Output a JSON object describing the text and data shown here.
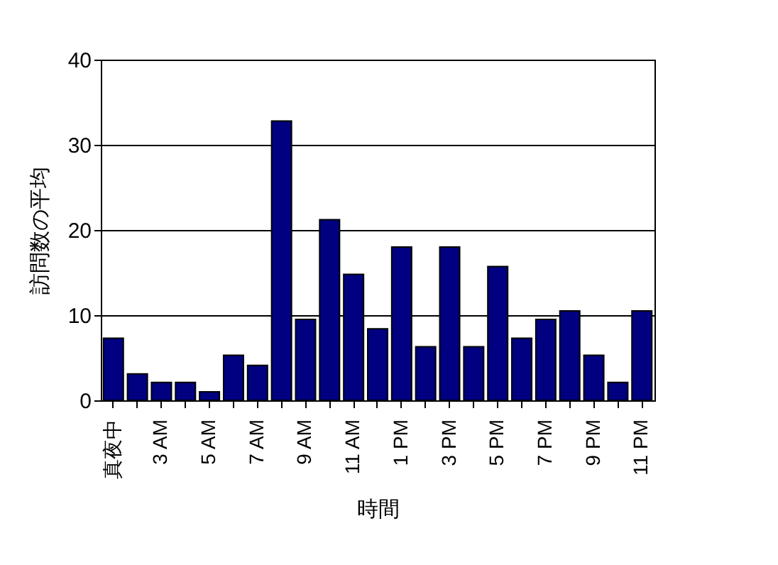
{
  "chart_data": {
    "type": "bar",
    "xlabel": "時間",
    "ylabel": "訪問数の平均",
    "categories": [
      "真夜中",
      null,
      "3 AM",
      null,
      "5 AM",
      null,
      "7 AM",
      null,
      "9 AM",
      null,
      "11 AM",
      null,
      "1 PM",
      null,
      "3 PM",
      null,
      "5 PM",
      null,
      "7 PM",
      null,
      "9 PM",
      null,
      "11 PM"
    ],
    "values": [
      7.3,
      3.1,
      2.1,
      2.1,
      1.0,
      5.3,
      4.1,
      32.8,
      9.5,
      21.2,
      14.8,
      8.4,
      18.0,
      6.3,
      18.0,
      6.3,
      15.7,
      7.3,
      9.5,
      10.5,
      5.3,
      2.1,
      10.5
    ],
    "color": "#000080",
    "ylim": [
      0,
      40
    ],
    "yticks": [
      0,
      10,
      20,
      30,
      40
    ],
    "grid": "y"
  }
}
